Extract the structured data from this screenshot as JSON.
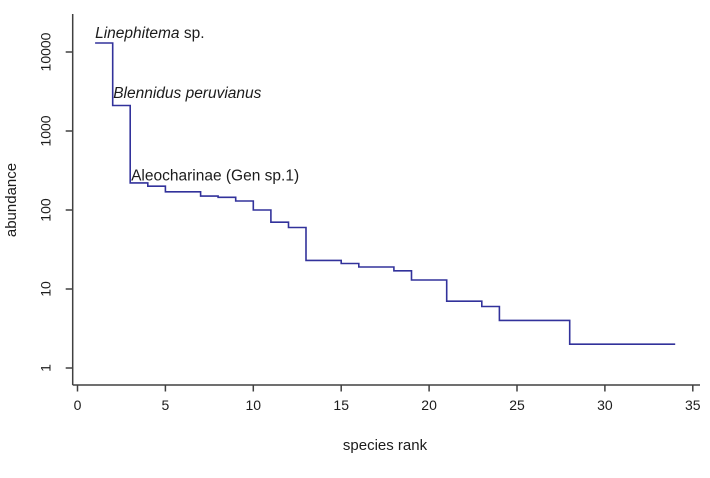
{
  "chart_data": {
    "type": "line",
    "subtype": "step-rank-abundance",
    "title": "",
    "xlabel": "species rank",
    "ylabel": "abundance",
    "y_scale": "log10",
    "grid": false,
    "legend": "none",
    "xlim": [
      0,
      35
    ],
    "ylim": [
      1,
      30000
    ],
    "x_ticks": [
      0,
      5,
      10,
      15,
      20,
      25,
      30,
      35
    ],
    "y_ticks": [
      1,
      10,
      100,
      1000,
      10000
    ],
    "line_color": "#32329b",
    "axis_color": "#404040",
    "text_color": "#1c1c1c",
    "x": [
      1,
      2,
      3,
      4,
      5,
      6,
      7,
      8,
      9,
      10,
      11,
      12,
      13,
      14,
      15,
      16,
      17,
      18,
      19,
      20,
      21,
      22,
      23,
      24,
      25,
      26,
      27,
      28,
      29,
      30,
      31,
      32,
      33,
      34
    ],
    "values": [
      13000,
      2100,
      220,
      200,
      170,
      170,
      150,
      145,
      130,
      100,
      70,
      60,
      23,
      23,
      21,
      19,
      19,
      17,
      13,
      13,
      7,
      7,
      6,
      4,
      4,
      4,
      4,
      2,
      2,
      2,
      2,
      2,
      2,
      2
    ],
    "annotations": [
      {
        "name": "label-linephitema",
        "italic_text": "Linephitema",
        "regular_text": " sp.",
        "x": 1.0,
        "y": 15000
      },
      {
        "name": "label-blennidus",
        "italic_text": "Blennidus peruvianus",
        "regular_text": "",
        "x": 2.03,
        "y": 2600
      },
      {
        "name": "label-aleocharinae",
        "italic_text": "",
        "regular_text": "Aleocharinae (Gen sp.1)",
        "x": 3.05,
        "y": 235
      }
    ]
  }
}
